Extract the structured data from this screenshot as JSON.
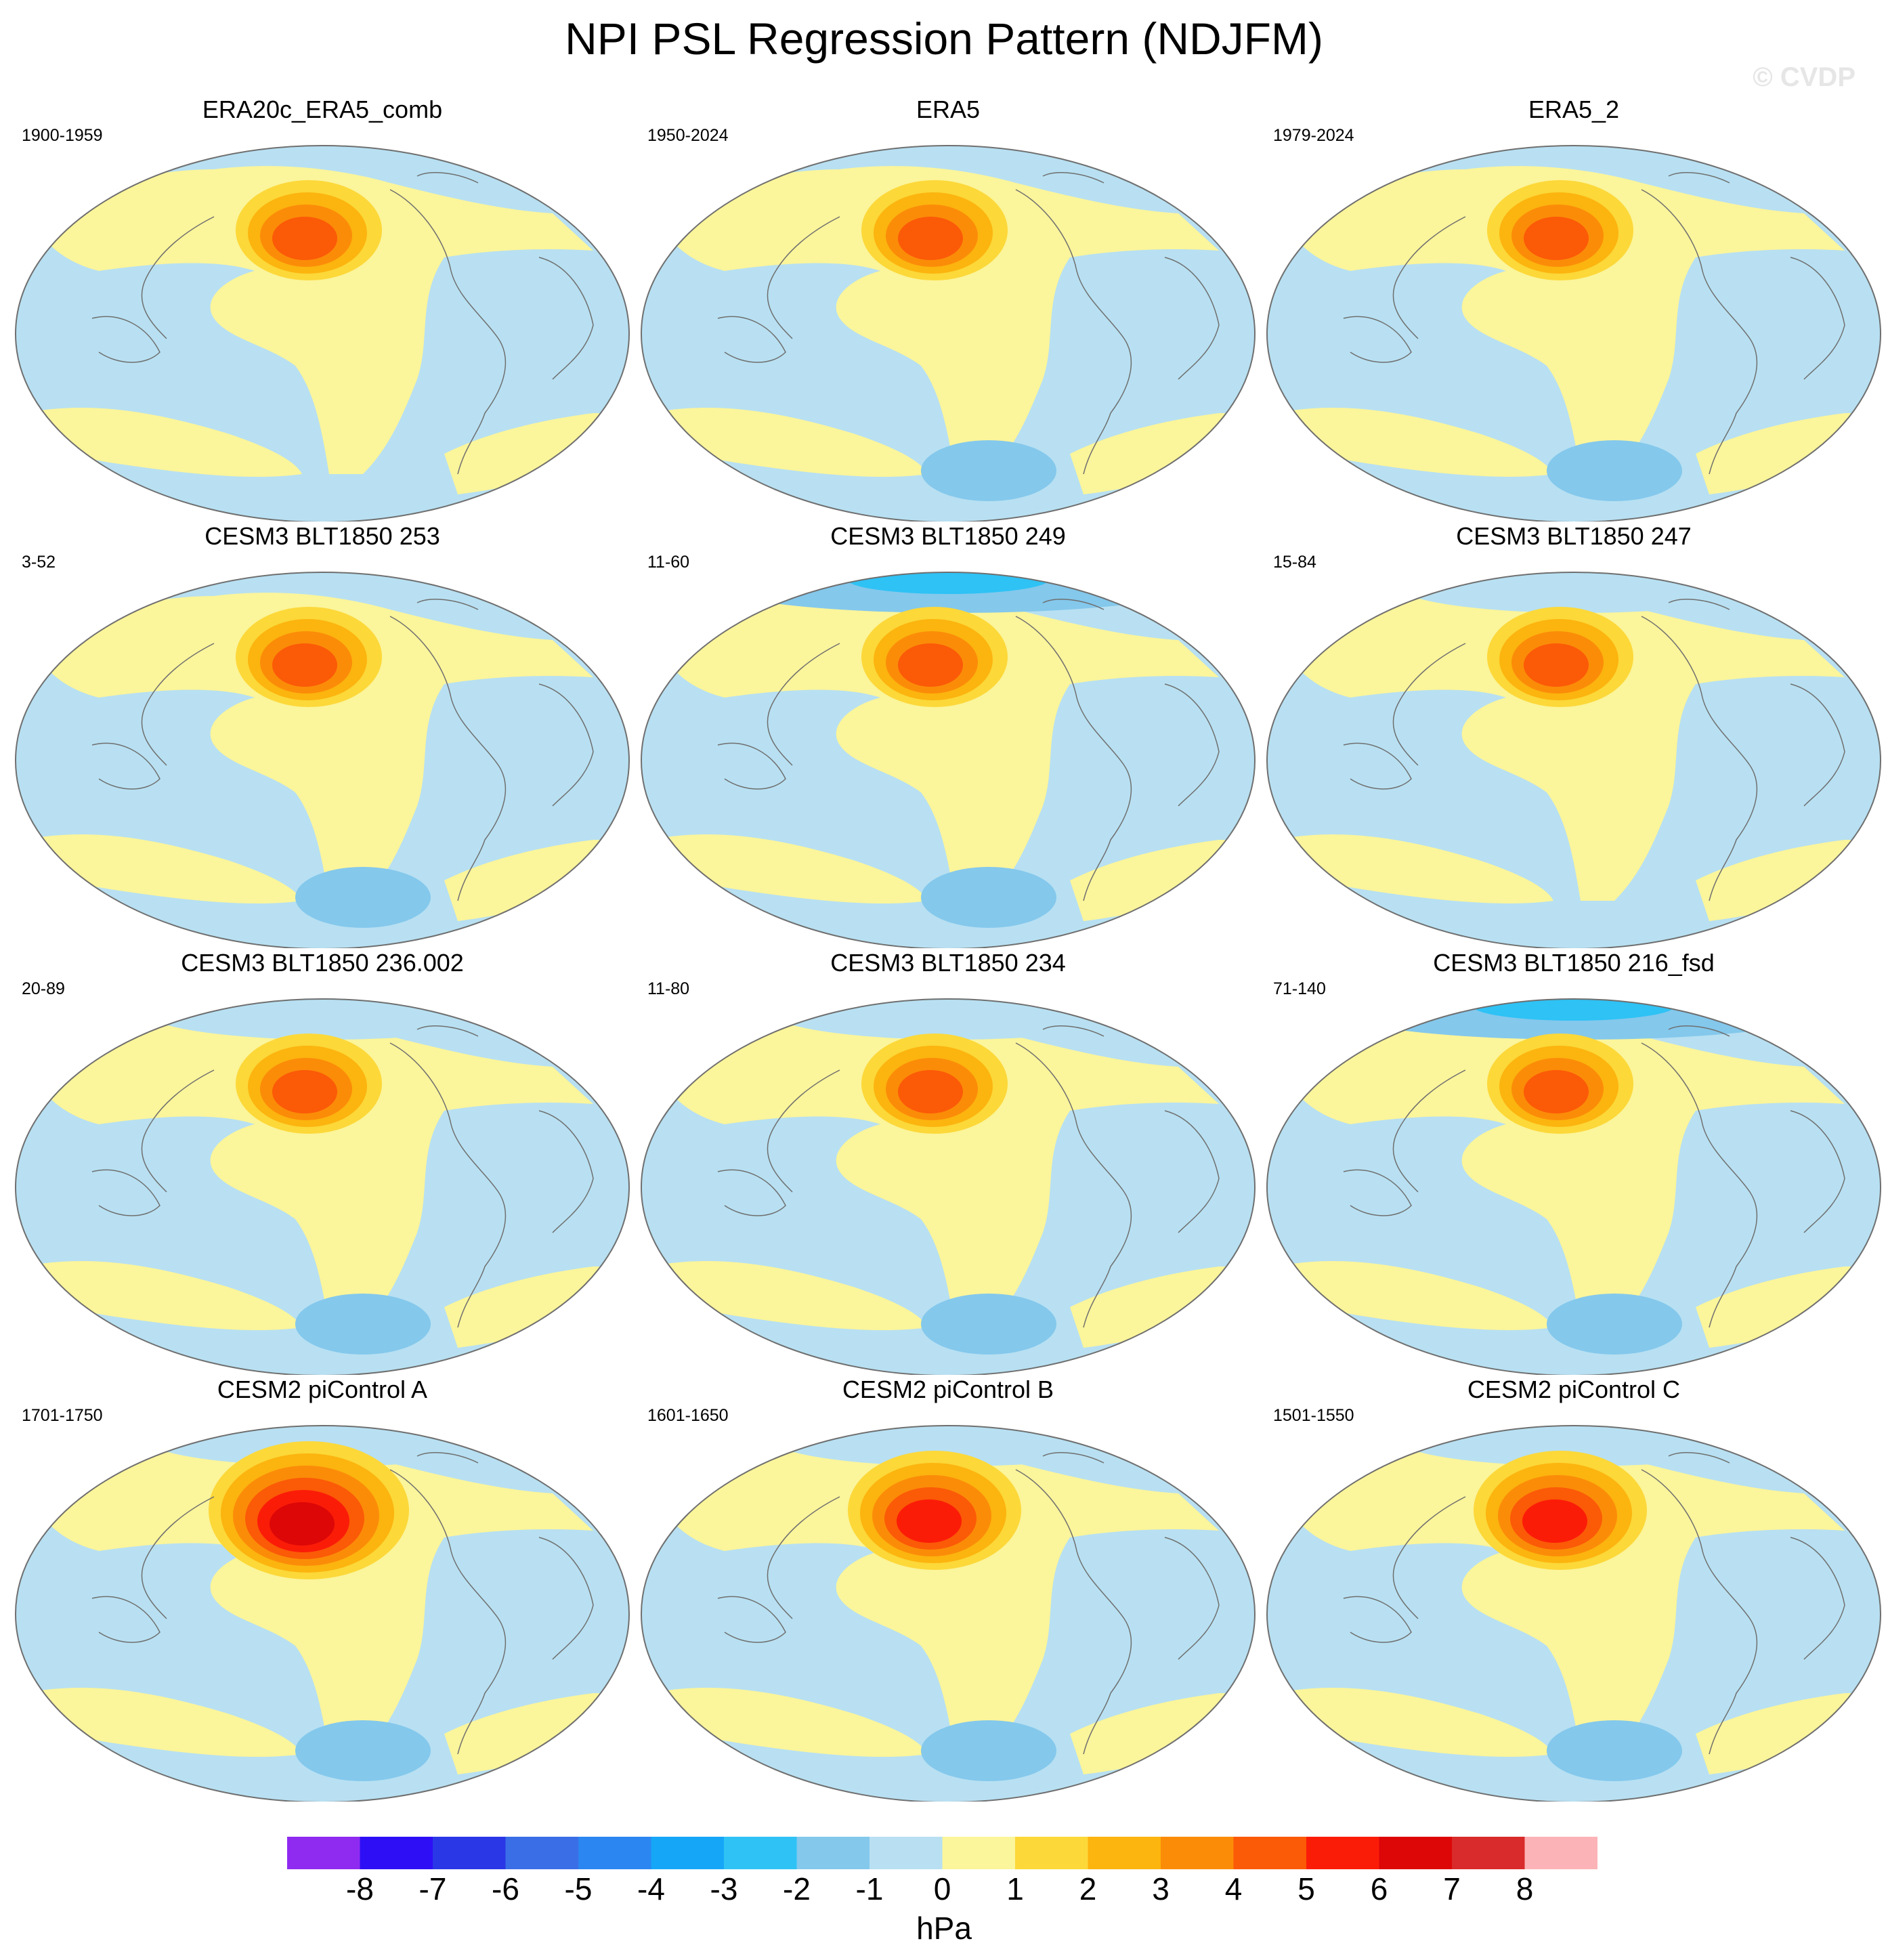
{
  "title": "NPI PSL Regression Pattern (NDJFM)",
  "watermark": "© CVDP",
  "panels": [
    {
      "title": "ERA20c_ERA5_comb",
      "years": "1900-1959",
      "max": 4,
      "southLow": 0,
      "arcticLow": 0
    },
    {
      "title": "ERA5",
      "years": "1950-2024",
      "max": 4,
      "southLow": 1,
      "arcticLow": 0
    },
    {
      "title": "ERA5_2",
      "years": "1979-2024",
      "max": 4,
      "southLow": 2,
      "arcticLow": 0
    },
    {
      "title": "CESM3 BLT1850 253",
      "years": "3-52",
      "max": 4,
      "southLow": 2,
      "arcticLow": 0
    },
    {
      "title": "CESM3 BLT1850 249",
      "years": "11-60",
      "max": 4,
      "southLow": 2,
      "arcticLow": 3
    },
    {
      "title": "CESM3 BLT1850 247",
      "years": "15-84",
      "max": 4,
      "southLow": 0,
      "arcticLow": 1
    },
    {
      "title": "CESM3 BLT1850 236.002",
      "years": "20-89",
      "max": 4,
      "southLow": 2,
      "arcticLow": 1
    },
    {
      "title": "CESM3 BLT1850 234",
      "years": "11-80",
      "max": 4,
      "southLow": 1,
      "arcticLow": 1
    },
    {
      "title": "CESM3 BLT1850 216_fsd",
      "years": "71-140",
      "max": 4,
      "southLow": 1,
      "arcticLow": 3
    },
    {
      "title": "CESM2 piControl A",
      "years": "1701-1750",
      "max": 6,
      "southLow": 2,
      "arcticLow": 1
    },
    {
      "title": "CESM2 piControl B",
      "years": "1601-1650",
      "max": 5,
      "southLow": 2,
      "arcticLow": 1
    },
    {
      "title": "CESM2 piControl C",
      "years": "1501-1550",
      "max": 5,
      "southLow": 2,
      "arcticLow": 1
    }
  ],
  "colorbar": {
    "unit": "hPa",
    "labels": [
      "-8",
      "-7",
      "-6",
      "-5",
      "-4",
      "-3",
      "-2",
      "-1",
      "0",
      "1",
      "2",
      "3",
      "4",
      "5",
      "6",
      "7",
      "8"
    ],
    "colors": [
      "#8f2bf0",
      "#2e0ff5",
      "#2a37e6",
      "#3a6ee6",
      "#2b86f2",
      "#16a6f7",
      "#2ec2f5",
      "#84c8ec",
      "#b8e0f2",
      "#fbf59b",
      "#fcd839",
      "#fcb40e",
      "#fb8c08",
      "#fb5a07",
      "#fb1c08",
      "#dd0707",
      "#d92b2b",
      "#fbb3b7"
    ]
  }
}
